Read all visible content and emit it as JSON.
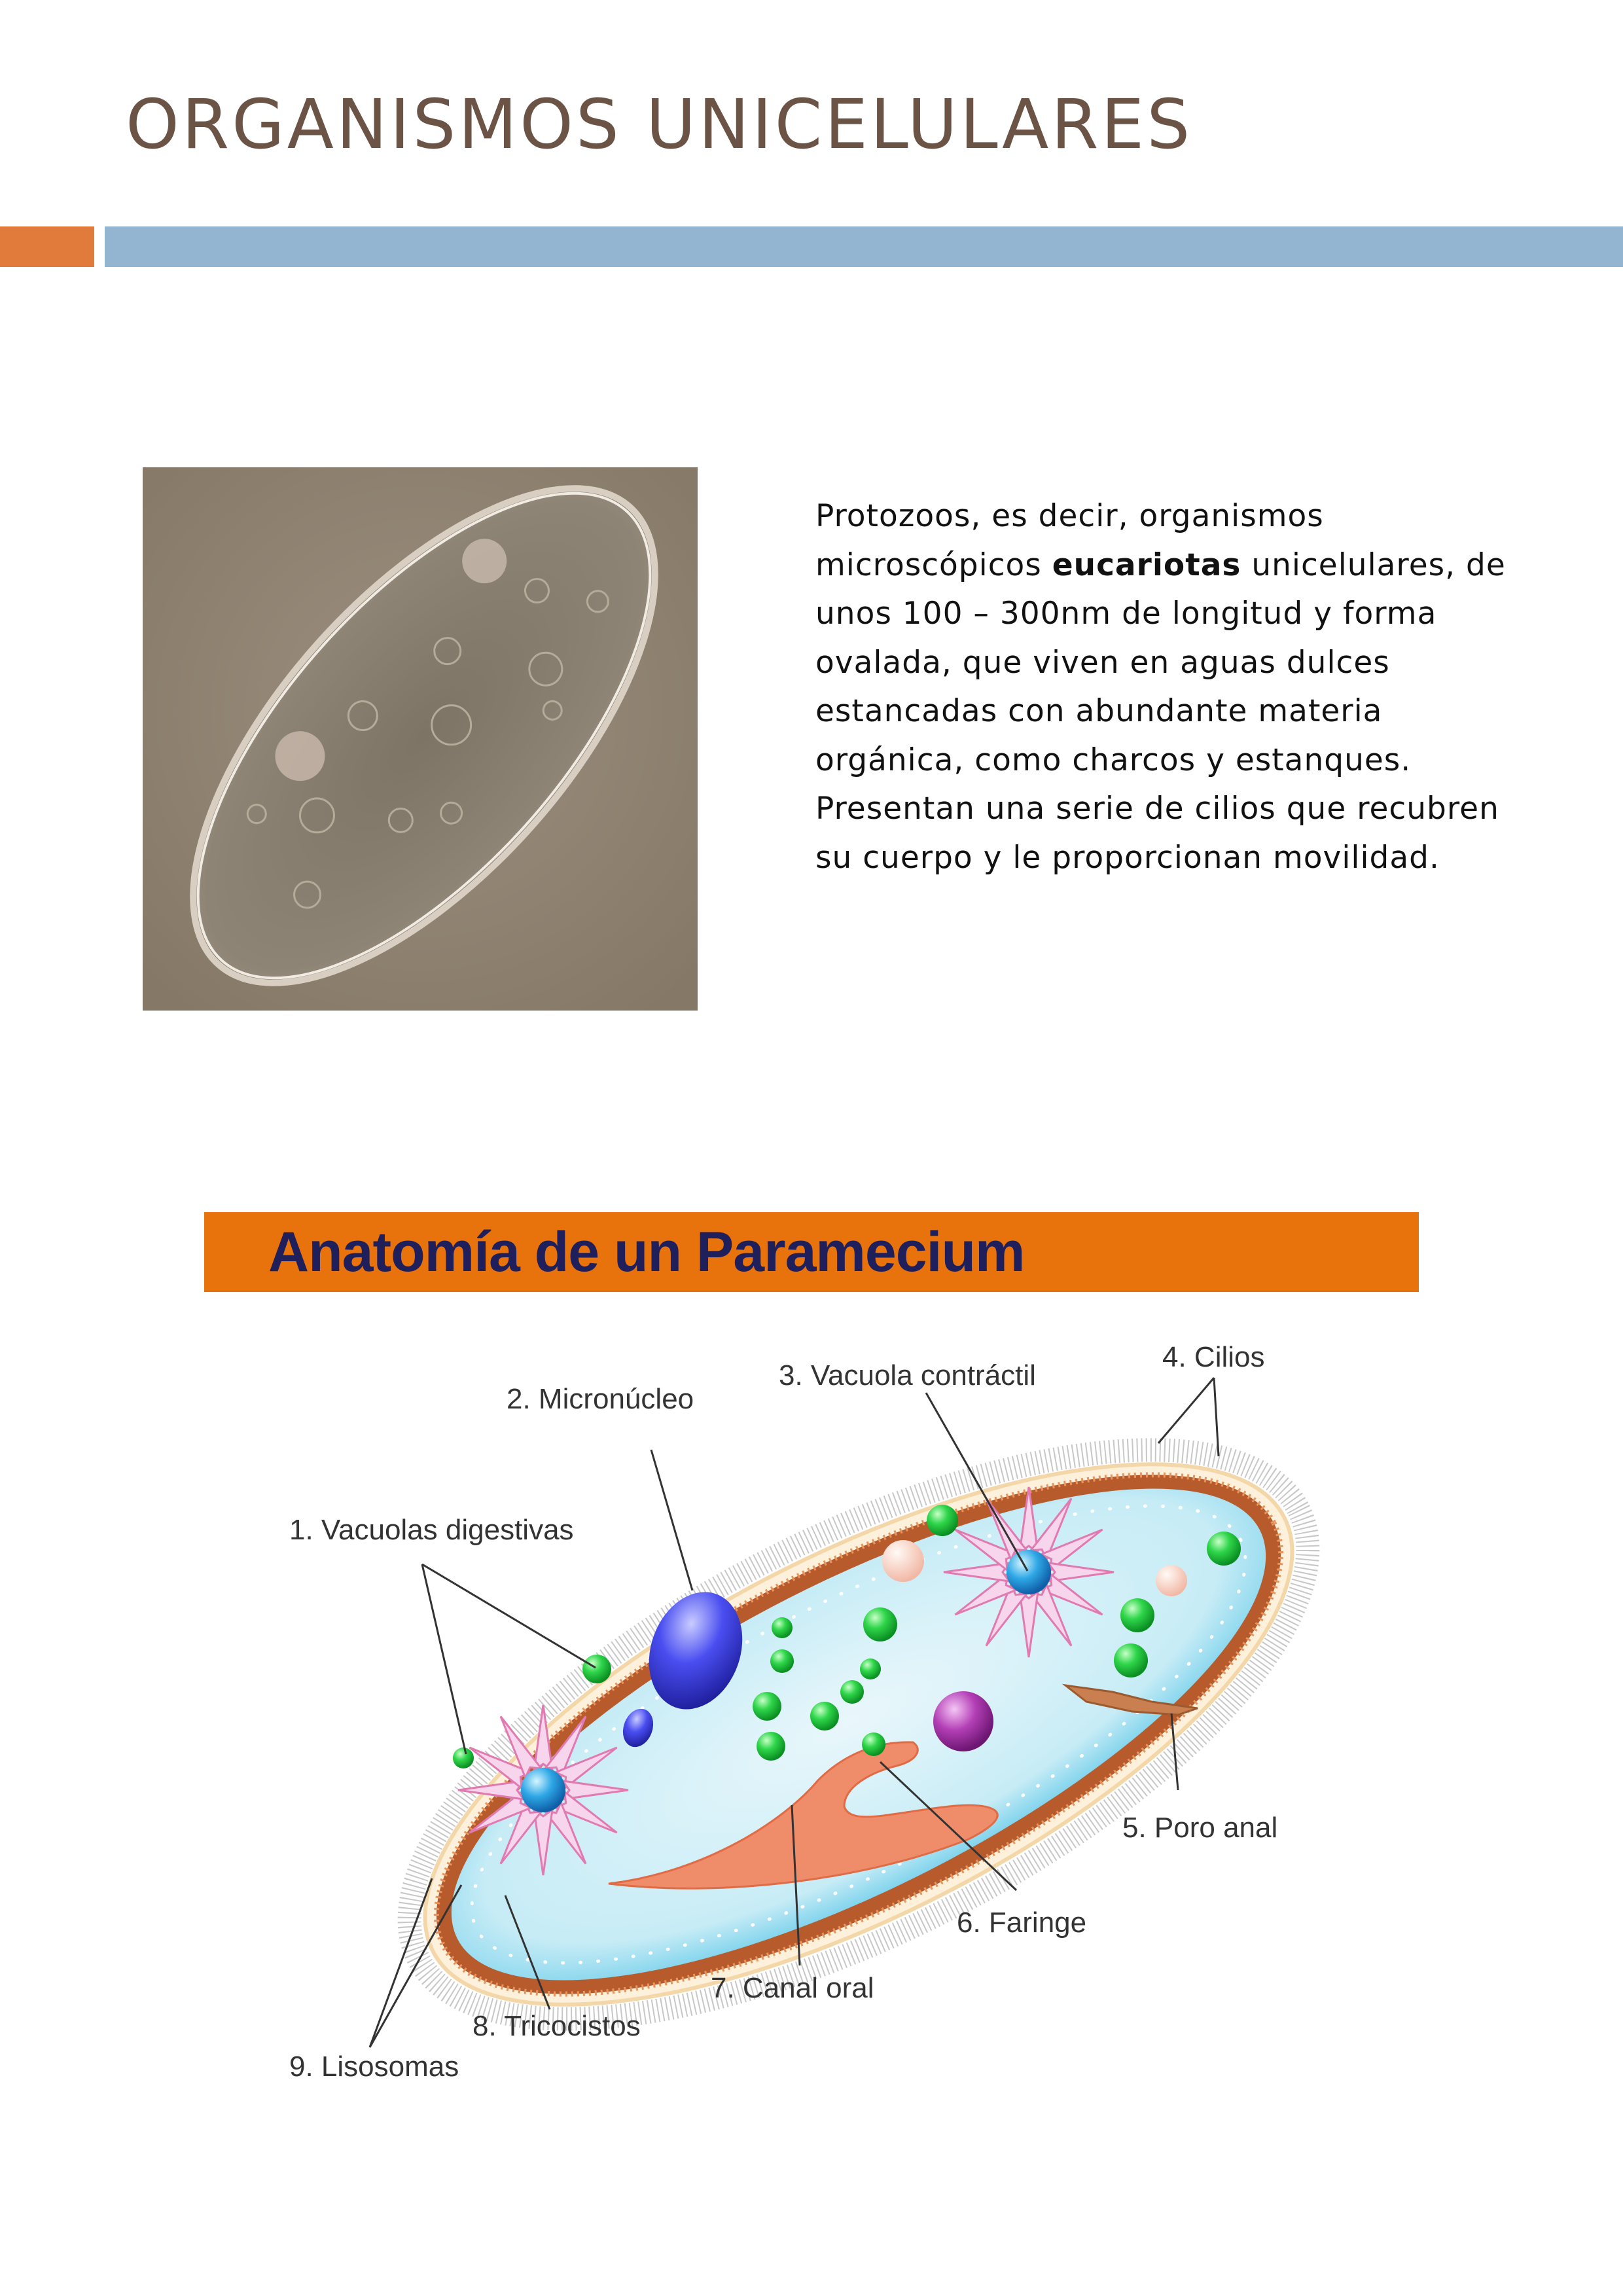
{
  "page": {
    "title": "ORGANISMOS UNICELULARES"
  },
  "intro": {
    "p1": "Protozoos, es decir, organismos microscópicos ",
    "bold": "eucariotas",
    "p2": " unicelulares, de unos 100 – 300nm de longitud y forma ovalada, que viven en aguas dulces estancadas con abundante materia orgánica, como charcos y estanques. Presentan una serie de cilios que recubren su cuerpo y le proporcionan movilidad."
  },
  "diagram": {
    "title": "Anatomía de un Paramecium",
    "labels": {
      "l1": "1. Vacuolas digestivas",
      "l2": "2. Micronúcleo",
      "l3": "3. Vacuola contráctil",
      "l4": "4. Cilios",
      "l5": "5. Poro anal",
      "l6": "6. Faringe",
      "l7": "7. Canal oral",
      "l8": "8. Tricocistos",
      "l9": "9. Lisosomas"
    }
  },
  "colors": {
    "title_text": "#6b5446",
    "accent_orange": "#e07b3c",
    "accent_blue": "#93b5d2",
    "banner_orange": "#e8730c",
    "banner_text": "#1f1f5c"
  }
}
